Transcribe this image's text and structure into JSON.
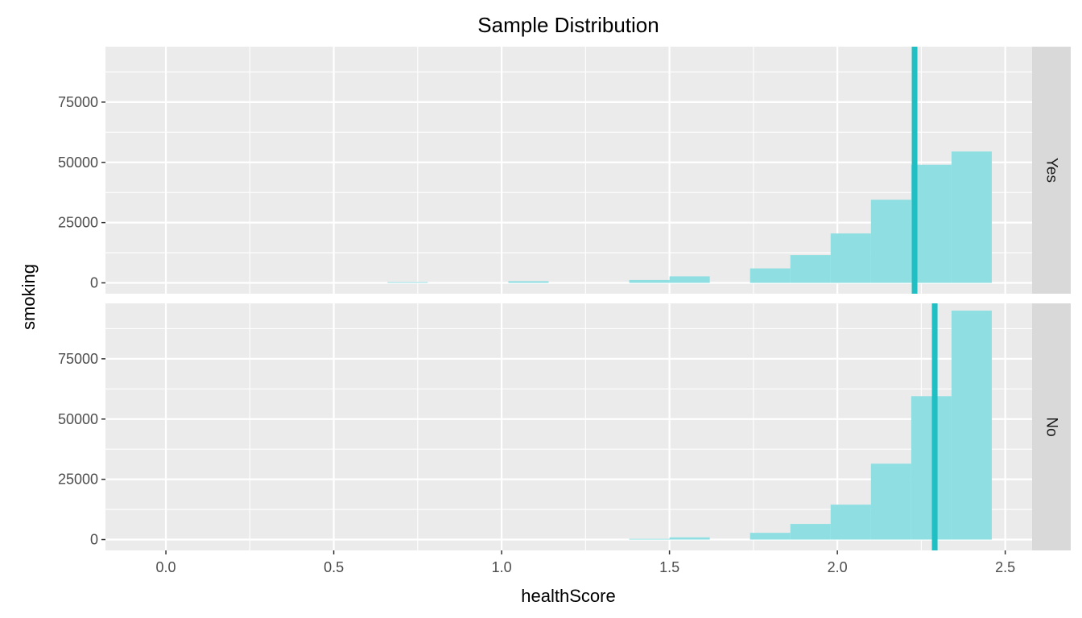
{
  "chart_data": {
    "type": "bar",
    "subtype": "faceted-histogram",
    "title": "Sample Distribution",
    "xlabel": "healthScore",
    "ylabel": "smoking",
    "xlim": [
      -0.18,
      2.58
    ],
    "ylim": [
      -4500,
      98000
    ],
    "x_ticks": [
      0.0,
      0.5,
      1.0,
      1.5,
      2.0,
      2.5
    ],
    "x_tick_labels": [
      "0.0",
      "0.5",
      "1.0",
      "1.5",
      "2.0",
      "2.5"
    ],
    "y_ticks": [
      0,
      25000,
      50000,
      75000
    ],
    "y_tick_labels": [
      "0",
      "25000",
      "50000",
      "75000"
    ],
    "bin_width": 0.12,
    "bin_starts": [
      0.66,
      1.02,
      1.38,
      1.5,
      1.74,
      1.86,
      1.98,
      2.1,
      2.22,
      2.34
    ],
    "grid": true,
    "bar_color": "#8fdfe2",
    "mean_line_color": "#1fbfc4",
    "panel_background": "#ebebeb",
    "strip_background": "#d9d9d9",
    "facets": [
      {
        "label": "Yes",
        "values": [
          300,
          700,
          1200,
          2700,
          6000,
          11500,
          20500,
          34500,
          49000,
          54500
        ],
        "mean": 2.23
      },
      {
        "label": "No",
        "values": [
          0,
          0,
          300,
          900,
          2800,
          6500,
          14500,
          31500,
          59500,
          95000
        ],
        "mean": 2.29
      }
    ]
  }
}
